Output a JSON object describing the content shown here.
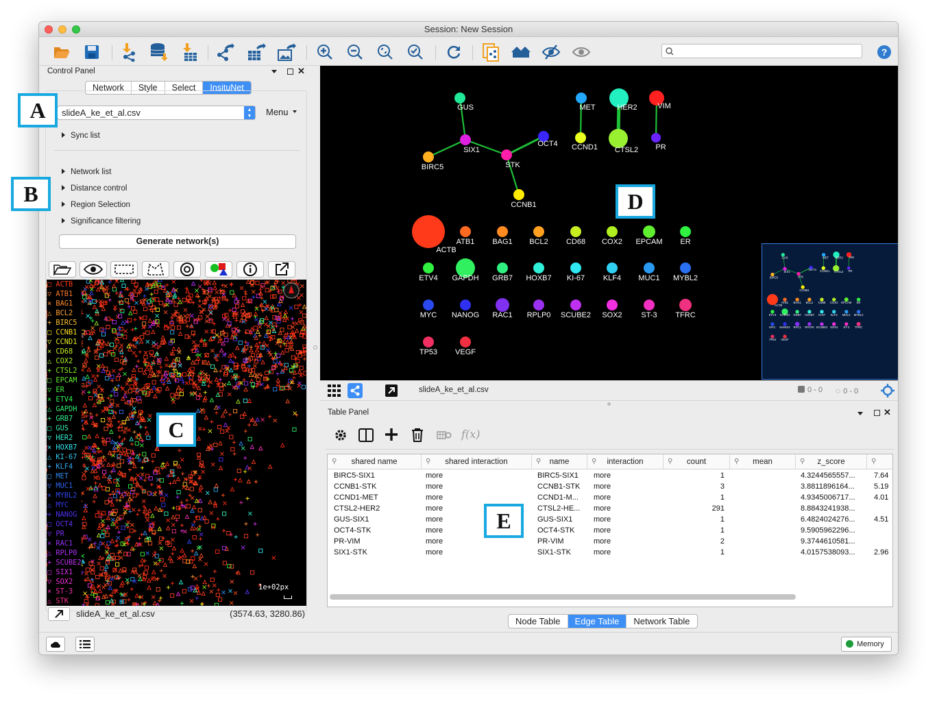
{
  "window": {
    "title": "Session: New Session"
  },
  "search": {
    "placeholder": ""
  },
  "control_panel": {
    "title": "Control Panel",
    "tabs": [
      "Network",
      "Style",
      "Select",
      "InsituNet"
    ],
    "active_tab": "InsituNet",
    "file_select": "slideA_ke_et_al.csv",
    "menu_label": "Menu",
    "tree_items": [
      "Sync list",
      "Network list",
      "Distance control",
      "Region Selection",
      "Significance filtering"
    ],
    "generate_label": "Generate network(s)"
  },
  "map": {
    "legend": [
      {
        "sym": "□",
        "name": "ACTB",
        "color": "#ff3a1e"
      },
      {
        "sym": "▽",
        "name": "ATB1",
        "color": "#ff7a2a"
      },
      {
        "sym": "×",
        "name": "BAG1",
        "color": "#ff8a2a"
      },
      {
        "sym": "△",
        "name": "BCL2",
        "color": "#ffa032"
      },
      {
        "sym": "+",
        "name": "BIRC5",
        "color": "#ffc030"
      },
      {
        "sym": "□",
        "name": "CCNB1",
        "color": "#ffe020"
      },
      {
        "sym": "▽",
        "name": "CCND1",
        "color": "#e8f020"
      },
      {
        "sym": "×",
        "name": "CD68",
        "color": "#c8f020"
      },
      {
        "sym": "△",
        "name": "COX2",
        "color": "#a8f020"
      },
      {
        "sym": "+",
        "name": "CTSL2",
        "color": "#88f020"
      },
      {
        "sym": "□",
        "name": "EPCAM",
        "color": "#60f030"
      },
      {
        "sym": "▽",
        "name": "ER",
        "color": "#40f040"
      },
      {
        "sym": "×",
        "name": "ETV4",
        "color": "#30f050"
      },
      {
        "sym": "△",
        "name": "GAPDH",
        "color": "#30f070"
      },
      {
        "sym": "+",
        "name": "GRB7",
        "color": "#30f090"
      },
      {
        "sym": "□",
        "name": "GUS",
        "color": "#30f0b0"
      },
      {
        "sym": "▽",
        "name": "HER2",
        "color": "#30f0d0"
      },
      {
        "sym": "×",
        "name": "HOXB7",
        "color": "#30e8f0"
      },
      {
        "sym": "△",
        "name": "KI-67",
        "color": "#30c8f0"
      },
      {
        "sym": "+",
        "name": "KLF4",
        "color": "#30a8f0"
      },
      {
        "sym": "□",
        "name": "MET",
        "color": "#3088f0"
      },
      {
        "sym": "▽",
        "name": "MUC1",
        "color": "#3068f0"
      },
      {
        "sym": "×",
        "name": "MYBL2",
        "color": "#3048f0"
      },
      {
        "sym": "△",
        "name": "MYC",
        "color": "#3838f0"
      },
      {
        "sym": "+",
        "name": "NANOG",
        "color": "#4a30f0"
      },
      {
        "sym": "□",
        "name": "OCT4",
        "color": "#6030f0"
      },
      {
        "sym": "▽",
        "name": "PR",
        "color": "#7830f0"
      },
      {
        "sym": "×",
        "name": "RAC1",
        "color": "#9030f0"
      },
      {
        "sym": "△",
        "name": "RPLP0",
        "color": "#a830f0"
      },
      {
        "sym": "+",
        "name": "SCUBE2",
        "color": "#c030f0"
      },
      {
        "sym": "□",
        "name": "SIX1",
        "color": "#d830e8"
      },
      {
        "sym": "▽",
        "name": "SOX2",
        "color": "#f030d8"
      },
      {
        "sym": "×",
        "name": "ST-3",
        "color": "#f030b0"
      },
      {
        "sym": "△",
        "name": "STK",
        "color": "#f03088"
      }
    ],
    "scale_label": "1e+02px",
    "filename": "slideA_ke_et_al.csv",
    "coords": "(3574.63, 3280.86)"
  },
  "network": {
    "filename": "slideA_ke_et_al.csv",
    "sel_nodes": "0 - 0",
    "sel_edges": "0 - 0",
    "nodes": [
      {
        "label": "GUS",
        "color": "#20e898"
      },
      {
        "label": "SIX1",
        "color": "#e020e0"
      },
      {
        "label": "BIRC5",
        "color": "#ffb020"
      },
      {
        "label": "STK",
        "color": "#ff1eaa"
      },
      {
        "label": "OCT4",
        "color": "#3a26ff"
      },
      {
        "label": "CCNB1",
        "color": "#ffec00"
      },
      {
        "label": "MET",
        "color": "#22a8ff"
      },
      {
        "label": "CCND1",
        "color": "#e8ff20"
      },
      {
        "label": "HER2",
        "color": "#22f0c0"
      },
      {
        "label": "CTSL2",
        "color": "#98f030"
      },
      {
        "label": "VIM",
        "color": "#ff2020"
      },
      {
        "label": "PR",
        "color": "#6a22ff"
      },
      {
        "label": "ACTB",
        "color": "#ff3a1a"
      },
      {
        "label": "ATB1",
        "color": "#ff6a20"
      },
      {
        "label": "BAG1",
        "color": "#ff8a20"
      },
      {
        "label": "BCL2",
        "color": "#ffa020"
      },
      {
        "label": "CD68",
        "color": "#c8f020"
      },
      {
        "label": "COX2",
        "color": "#b0f020"
      },
      {
        "label": "EPCAM",
        "color": "#60f030"
      },
      {
        "label": "ER",
        "color": "#30f040"
      },
      {
        "label": "ETV4",
        "color": "#30f040"
      },
      {
        "label": "GAPDH",
        "color": "#30f060"
      },
      {
        "label": "GRB7",
        "color": "#30f080"
      },
      {
        "label": "HOXB7",
        "color": "#30f0d8"
      },
      {
        "label": "KI-67",
        "color": "#30e8f0"
      },
      {
        "label": "KLF4",
        "color": "#30d0f0"
      },
      {
        "label": "MUC1",
        "color": "#2a9af0"
      },
      {
        "label": "MYBL2",
        "color": "#2a70f0"
      },
      {
        "label": "MYC",
        "color": "#2a4af0"
      },
      {
        "label": "NANOG",
        "color": "#3030f0"
      },
      {
        "label": "RAC1",
        "color": "#8030f0"
      },
      {
        "label": "RPLP0",
        "color": "#9a30f0"
      },
      {
        "label": "SCUBE2",
        "color": "#c030f0"
      },
      {
        "label": "SOX2",
        "color": "#f030e0"
      },
      {
        "label": "ST-3",
        "color": "#f030c0"
      },
      {
        "label": "TFRC",
        "color": "#f03080"
      },
      {
        "label": "TP53",
        "color": "#f03060"
      },
      {
        "label": "VEGF",
        "color": "#f03040"
      }
    ]
  },
  "table_panel": {
    "title": "Table Panel",
    "fx_label": "f(x)",
    "columns": [
      "shared name",
      "shared interaction",
      "name",
      "interaction",
      "count",
      "mean",
      "z_score",
      ""
    ],
    "rows": [
      [
        "BIRC5-SIX1",
        "more",
        "BIRC5-SIX1",
        "more",
        "1",
        "",
        "4.3244565557...",
        "7.64"
      ],
      [
        "CCNB1-STK",
        "more",
        "CCNB1-STK",
        "more",
        "3",
        "",
        "3.8811896164...",
        "5.19"
      ],
      [
        "CCND1-MET",
        "more",
        "CCND1-M...",
        "more",
        "1",
        "",
        "4.9345006717...",
        "4.01"
      ],
      [
        "CTSL2-HER2",
        "more",
        "CTSL2-HE...",
        "more",
        "291",
        "",
        "8.8843241938...",
        ""
      ],
      [
        "GUS-SIX1",
        "more",
        "GUS-SIX1",
        "more",
        "1",
        "",
        "6.4824024276...",
        "4.51"
      ],
      [
        "OCT4-STK",
        "more",
        "OCT4-STK",
        "more",
        "1",
        "",
        "9.5905962296...",
        ""
      ],
      [
        "PR-VIM",
        "more",
        "PR-VIM",
        "more",
        "2",
        "",
        "9.3744610581...",
        ""
      ],
      [
        "SIX1-STK",
        "more",
        "SIX1-STK",
        "more",
        "1",
        "",
        "4.0157538093...",
        "2.96"
      ]
    ],
    "bottom_tabs": [
      "Node Table",
      "Edge Table",
      "Network Table"
    ],
    "active_bottom_tab": "Edge Table"
  },
  "status": {
    "memory_label": "Memory"
  },
  "badges": {
    "a": "A",
    "b": "B",
    "c": "C",
    "d": "D",
    "e": "E"
  }
}
